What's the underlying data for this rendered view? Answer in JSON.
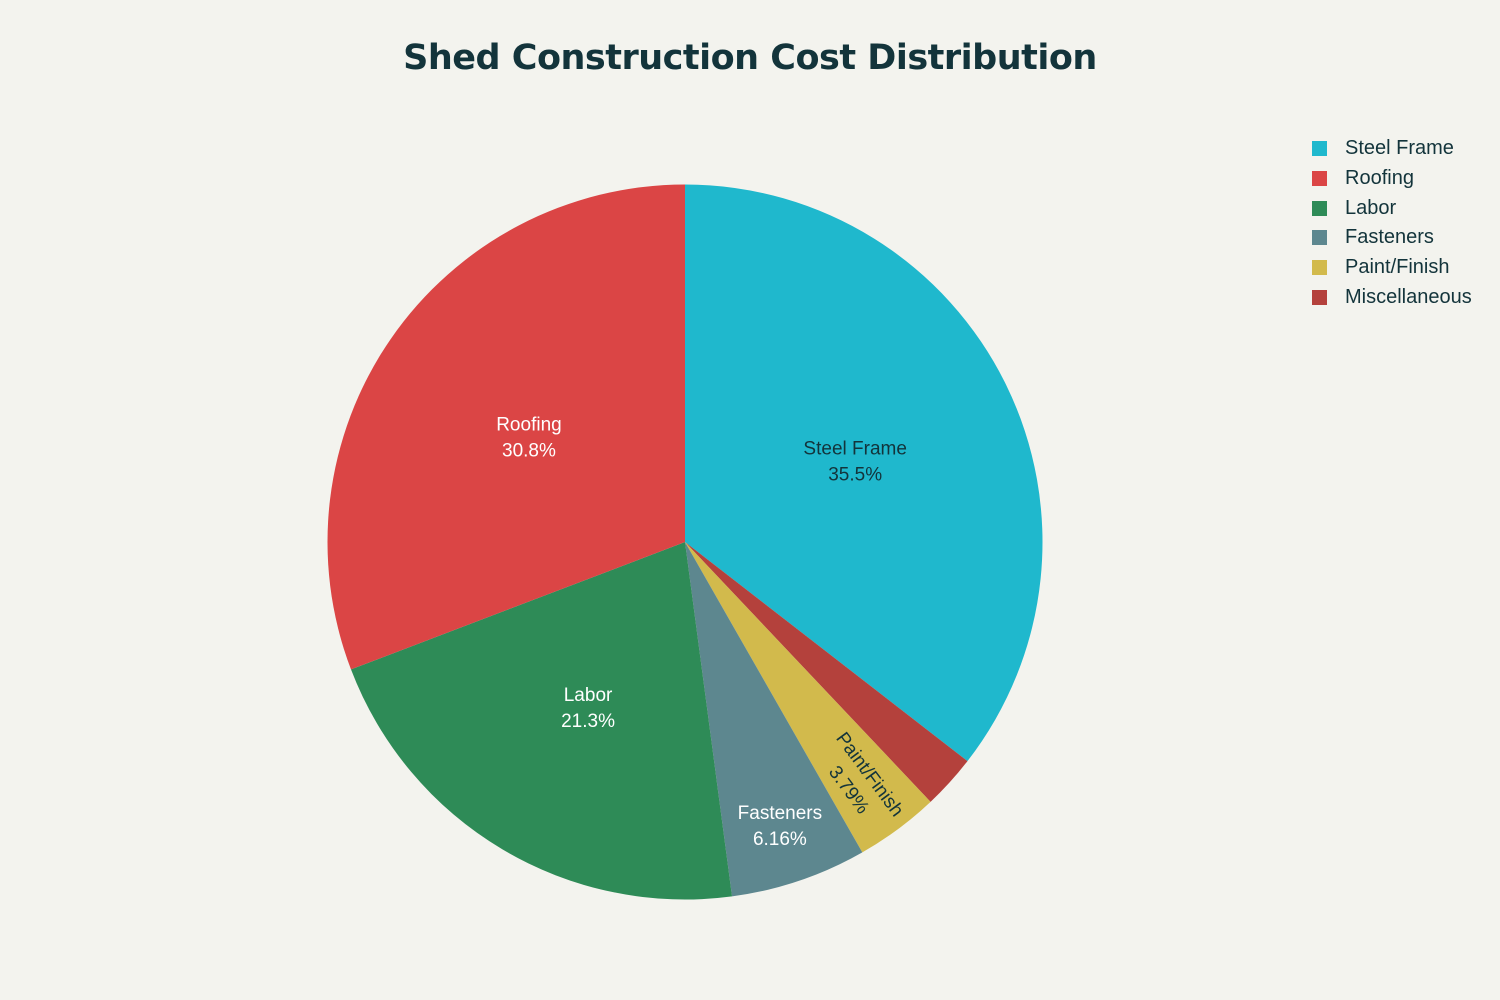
{
  "chart_data": {
    "type": "pie",
    "title": "Shed Construction Cost Distribution",
    "categories": [
      "Steel Frame",
      "Roofing",
      "Labor",
      "Fasteners",
      "Paint/Finish",
      "Miscellaneous"
    ],
    "values": [
      35.5,
      30.8,
      21.3,
      6.16,
      3.79,
      2.45
    ],
    "labels": [
      "35.5%",
      "30.8%",
      "21.3%",
      "6.16%",
      "3.79%",
      ""
    ],
    "unit": "%",
    "colors": [
      "#1FB8CD",
      "#DB4545",
      "#2E8B57",
      "#5D878F",
      "#D2BA4C",
      "#B4413C"
    ],
    "slice_order_clockwise_from_top": [
      "Steel Frame",
      "Miscellaneous",
      "Paint/Finish",
      "Fasteners",
      "Labor",
      "Roofing"
    ],
    "legend_position": "top-right",
    "background": "#F3F3EE"
  }
}
